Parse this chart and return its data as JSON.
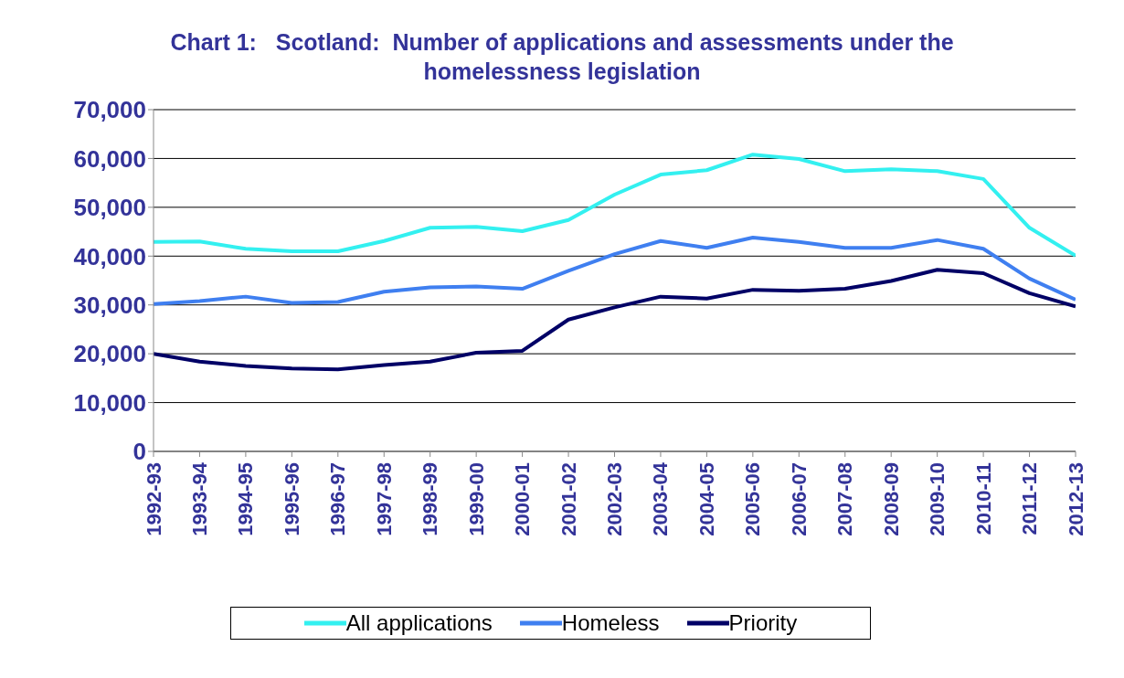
{
  "chart_data": {
    "type": "line",
    "title": "Chart 1:   Scotland:  Number of applications and assessments under the homelessness legislation",
    "categories": [
      "1992-93",
      "1993-94",
      "1994-95",
      "1995-96",
      "1996-97",
      "1997-98",
      "1998-99",
      "1999-00",
      "2000-01",
      "2001-02",
      "2002-03",
      "2003-04",
      "2004-05",
      "2005-06",
      "2006-07",
      "2007-08",
      "2008-09",
      "2009-10",
      "2010-11",
      "2011-12",
      "2012-13"
    ],
    "series": [
      {
        "name": "All applications",
        "color": "#33f0f0",
        "values": [
          42900,
          43000,
          41500,
          41000,
          41000,
          43100,
          45800,
          46000,
          45100,
          47400,
          52600,
          56700,
          57600,
          60800,
          59900,
          57400,
          57800,
          57400,
          55800,
          45800,
          40100
        ]
      },
      {
        "name": "Homeless",
        "color": "#3f7ff0",
        "values": [
          30200,
          30800,
          31700,
          30400,
          30600,
          32700,
          33600,
          33800,
          33300,
          37000,
          40400,
          43100,
          41700,
          43800,
          42900,
          41700,
          41700,
          43300,
          41500,
          35400,
          31100
        ]
      },
      {
        "name": "Priority",
        "color": "#000066",
        "values": [
          20000,
          18400,
          17500,
          17000,
          16800,
          17700,
          18400,
          20200,
          20600,
          27000,
          29500,
          31700,
          31300,
          33100,
          32900,
          33300,
          34900,
          37200,
          36500,
          32400,
          29700
        ]
      }
    ],
    "ylim": [
      0,
      70000
    ],
    "yticks": [
      {
        "value": 0,
        "label": "0"
      },
      {
        "value": 10000,
        "label": "10,000"
      },
      {
        "value": 20000,
        "label": "20,000"
      },
      {
        "value": 30000,
        "label": "30,000"
      },
      {
        "value": 40000,
        "label": "40,000"
      },
      {
        "value": 50000,
        "label": "50,000"
      },
      {
        "value": 60000,
        "label": "60,000"
      },
      {
        "value": 70000,
        "label": "70,000"
      }
    ],
    "grid": "y",
    "legend": "bottom",
    "marker": "none",
    "line_style": "solid"
  }
}
